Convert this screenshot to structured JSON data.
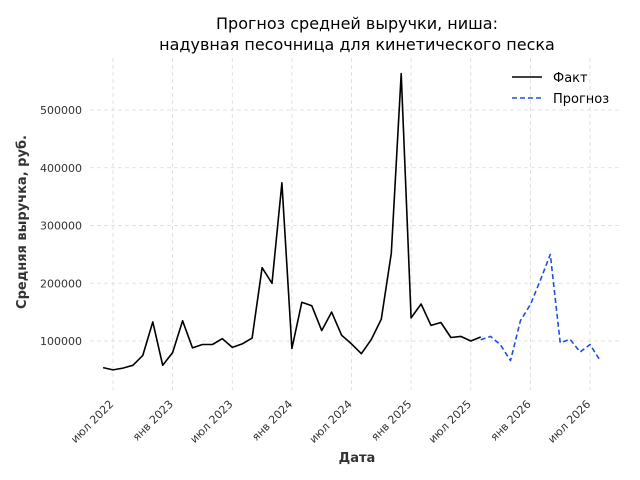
{
  "chart_data": {
    "type": "line",
    "title_line1": "Прогноз средней выручки, ниша:",
    "title_line2": "надувная песочница для кинетического песка",
    "xlabel": "Дата",
    "ylabel": "Средняя выручка, руб.",
    "ylim": [
      22000,
      590000
    ],
    "yticks": [
      100000,
      200000,
      300000,
      400000,
      500000
    ],
    "xticks": [
      {
        "label": "июл 2022",
        "date": "2022-07-01"
      },
      {
        "label": "янв 2023",
        "date": "2023-01-01"
      },
      {
        "label": "июл 2023",
        "date": "2023-07-01"
      },
      {
        "label": "янв 2024",
        "date": "2024-01-01"
      },
      {
        "label": "июл 2024",
        "date": "2024-07-01"
      },
      {
        "label": "янв 2025",
        "date": "2025-01-01"
      },
      {
        "label": "июл 2025",
        "date": "2025-07-01"
      },
      {
        "label": "янв 2026",
        "date": "2026-01-01"
      },
      {
        "label": "июл 2026",
        "date": "2026-07-01"
      }
    ],
    "grid": true,
    "legend_position": "top-right",
    "series": [
      {
        "name": "Факт",
        "color": "#000000",
        "style": "solid",
        "x": [
          "2022-06",
          "2022-07",
          "2022-08",
          "2022-09",
          "2022-10",
          "2022-11",
          "2022-12",
          "2023-01",
          "2023-02",
          "2023-03",
          "2023-04",
          "2023-05",
          "2023-06",
          "2023-07",
          "2023-08",
          "2023-09",
          "2023-10",
          "2023-11",
          "2023-12",
          "2024-01",
          "2024-02",
          "2024-03",
          "2024-04",
          "2024-05",
          "2024-06",
          "2024-07",
          "2024-08",
          "2024-09",
          "2024-10",
          "2024-11",
          "2024-12",
          "2025-01",
          "2025-02",
          "2025-03",
          "2025-04",
          "2025-05",
          "2025-06",
          "2025-07",
          "2025-08"
        ],
        "values": [
          54000,
          50000,
          53000,
          58000,
          75000,
          133000,
          58000,
          80000,
          135000,
          88000,
          94000,
          94000,
          104000,
          89000,
          95000,
          105000,
          227000,
          200000,
          374000,
          87000,
          167000,
          161000,
          118000,
          150000,
          110000,
          95000,
          78000,
          103000,
          138000,
          252000,
          563000,
          140000,
          164000,
          127000,
          132000,
          106000,
          108000,
          100000,
          107000
        ]
      },
      {
        "name": "Прогноз",
        "color": "#1f4fe0",
        "style": "dashed",
        "x": [
          "2025-08",
          "2025-09",
          "2025-10",
          "2025-11",
          "2025-12",
          "2026-01",
          "2026-02",
          "2026-03",
          "2026-04",
          "2026-05",
          "2026-06",
          "2026-07",
          "2026-08"
        ],
        "values": [
          102000,
          108000,
          93000,
          66000,
          135000,
          163000,
          205000,
          250000,
          97000,
          103000,
          81000,
          94000,
          67000
        ]
      }
    ]
  }
}
